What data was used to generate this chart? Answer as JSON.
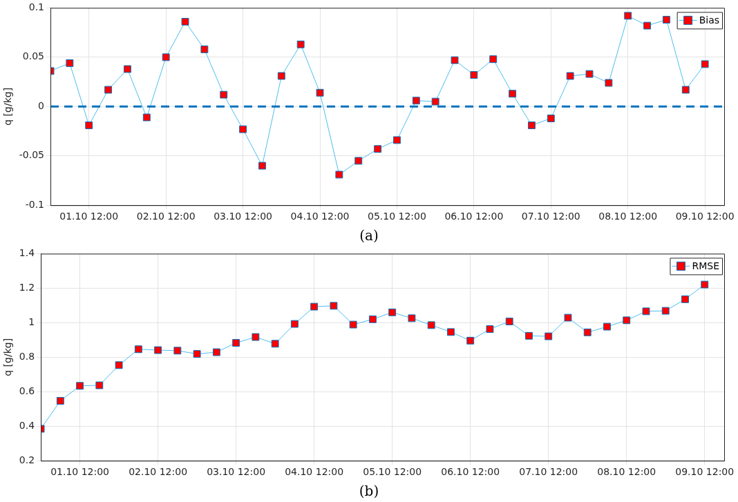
{
  "chart_data": [
    {
      "type": "line",
      "ylabel": "q [g/kg]",
      "annotations": [
        "(a)"
      ],
      "x": [
        "--10-01T00:00",
        "--10-01T06:00",
        "--10-01T12:00",
        "--10-01T18:00",
        "--10-02T00:00",
        "--10-02T06:00",
        "--10-02T12:00",
        "--10-02T18:00",
        "--10-03T00:00",
        "--10-03T06:00",
        "--10-03T12:00",
        "--10-03T18:00",
        "--10-04T00:00",
        "--10-04T06:00",
        "--10-04T12:00",
        "--10-04T18:00",
        "--10-05T00:00",
        "--10-05T06:00",
        "--10-05T12:00",
        "--10-05T18:00",
        "--10-06T00:00",
        "--10-06T06:00",
        "--10-06T12:00",
        "--10-06T18:00",
        "--10-07T00:00",
        "--10-07T06:00",
        "--10-07T12:00",
        "--10-07T18:00",
        "--10-08T00:00",
        "--10-08T06:00",
        "--10-08T12:00",
        "--10-08T18:00",
        "--10-09T00:00",
        "--10-09T06:00",
        "--10-09T12:00"
      ],
      "series": [
        {
          "name": "Bias",
          "color": "#ff0000",
          "values": [
            0.036,
            0.044,
            -0.019,
            0.017,
            0.038,
            -0.011,
            0.05,
            0.086,
            0.058,
            0.012,
            -0.023,
            -0.06,
            0.031,
            0.063,
            0.014,
            -0.069,
            -0.055,
            -0.043,
            -0.034,
            0.006,
            0.005,
            0.047,
            0.032,
            0.048,
            0.013,
            -0.019,
            -0.012,
            0.031,
            0.033,
            0.024,
            0.092,
            0.082,
            0.088,
            0.017,
            0.043
          ]
        }
      ],
      "xlim": [
        "--10-01T00:00",
        "--10-09T18:00"
      ],
      "xticks": [
        {
          "value": "--10-01T12:00",
          "label": "01.10 12:00"
        },
        {
          "value": "--10-02T12:00",
          "label": "02.10 12:00"
        },
        {
          "value": "--10-03T12:00",
          "label": "03.10 12:00"
        },
        {
          "value": "--10-04T12:00",
          "label": "04.10 12:00"
        },
        {
          "value": "--10-05T12:00",
          "label": "05.10 12:00"
        },
        {
          "value": "--10-06T12:00",
          "label": "06.10 12:00"
        },
        {
          "value": "--10-07T12:00",
          "label": "07.10 12:00"
        },
        {
          "value": "--10-08T12:00",
          "label": "08.10 12:00"
        },
        {
          "value": "--10-09T12:00",
          "label": "09.10 12:00"
        }
      ],
      "ylim": [
        -0.1,
        0.1
      ],
      "yticks": [
        -0.1,
        -0.05,
        0,
        0.05,
        0.1
      ],
      "ref_lines": [
        {
          "axis": "y",
          "value": 0,
          "color": "#0072bd",
          "line_style": "dashed"
        }
      ],
      "grid": true,
      "legend": "top right",
      "marker": "square",
      "line_style": "solid"
    },
    {
      "type": "line",
      "ylabel": "q [g/kg]",
      "annotations": [
        "(b)"
      ],
      "x": [
        "--10-01T00:00",
        "--10-01T06:00",
        "--10-01T12:00",
        "--10-01T18:00",
        "--10-02T00:00",
        "--10-02T06:00",
        "--10-02T12:00",
        "--10-02T18:00",
        "--10-03T00:00",
        "--10-03T06:00",
        "--10-03T12:00",
        "--10-03T18:00",
        "--10-04T00:00",
        "--10-04T06:00",
        "--10-04T12:00",
        "--10-04T18:00",
        "--10-05T00:00",
        "--10-05T06:00",
        "--10-05T12:00",
        "--10-05T18:00",
        "--10-06T00:00",
        "--10-06T06:00",
        "--10-06T12:00",
        "--10-06T18:00",
        "--10-07T00:00",
        "--10-07T06:00",
        "--10-07T12:00",
        "--10-07T18:00",
        "--10-08T00:00",
        "--10-08T06:00",
        "--10-08T12:00",
        "--10-08T18:00",
        "--10-09T00:00",
        "--10-09T06:00",
        "--10-09T12:00"
      ],
      "series": [
        {
          "name": "RMSE",
          "color": "#ff0000",
          "values": [
            0.385,
            0.547,
            0.634,
            0.637,
            0.754,
            0.846,
            0.841,
            0.838,
            0.819,
            0.829,
            0.883,
            0.917,
            0.878,
            0.993,
            1.093,
            1.098,
            0.989,
            1.02,
            1.06,
            1.026,
            0.986,
            0.946,
            0.896,
            0.963,
            1.007,
            0.924,
            0.921,
            1.029,
            0.944,
            0.977,
            1.014,
            1.066,
            1.069,
            1.136,
            1.221
          ]
        }
      ],
      "xlim": [
        "--10-01T00:00",
        "--10-09T18:00"
      ],
      "xticks": [
        {
          "value": "--10-01T12:00",
          "label": "01.10 12:00"
        },
        {
          "value": "--10-02T12:00",
          "label": "02.10 12:00"
        },
        {
          "value": "--10-03T12:00",
          "label": "03.10 12:00"
        },
        {
          "value": "--10-04T12:00",
          "label": "04.10 12:00"
        },
        {
          "value": "--10-05T12:00",
          "label": "05.10 12:00"
        },
        {
          "value": "--10-06T12:00",
          "label": "06.10 12:00"
        },
        {
          "value": "--10-07T12:00",
          "label": "07.10 12:00"
        },
        {
          "value": "--10-08T12:00",
          "label": "08.10 12:00"
        },
        {
          "value": "--10-09T12:00",
          "label": "09.10 12:00"
        }
      ],
      "ylim": [
        0.2,
        1.4
      ],
      "yticks": [
        0.2,
        0.4,
        0.6,
        0.8,
        1,
        1.2,
        1.4
      ],
      "grid": true,
      "legend": "top right",
      "marker": "square",
      "line_style": "solid"
    }
  ]
}
